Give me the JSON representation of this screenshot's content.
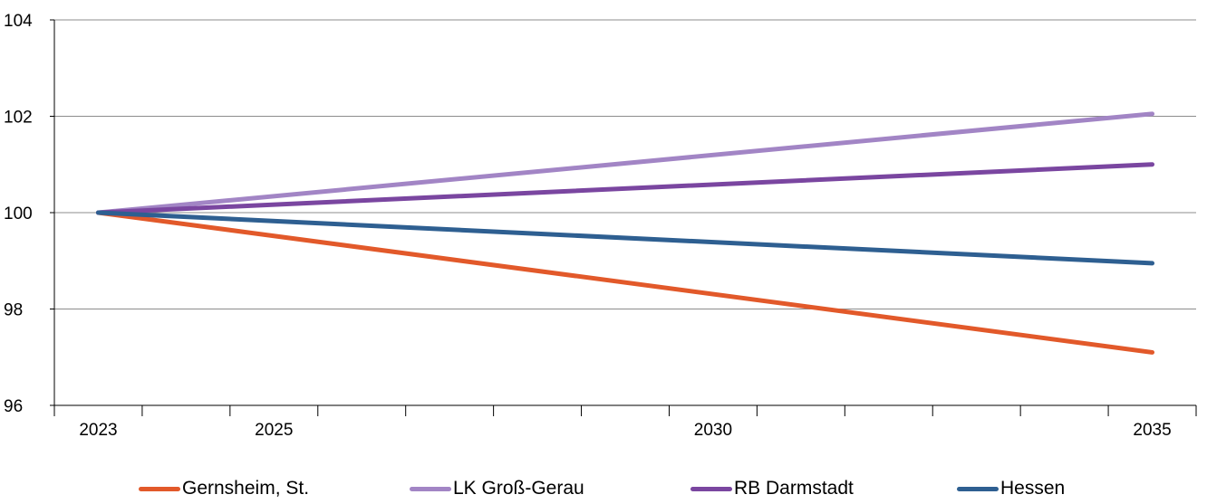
{
  "chart_data": {
    "type": "line",
    "title": "",
    "xlabel": "",
    "ylabel": "",
    "x": [
      2023,
      2035
    ],
    "xticks": [
      "2023",
      "2025",
      "2030",
      "2035"
    ],
    "xlim": [
      2022.5,
      2035.5
    ],
    "ylim": [
      96,
      104
    ],
    "yticks": [
      "96",
      "98",
      "100",
      "102",
      "104"
    ],
    "grid": "horizontal",
    "legend_position": "bottom",
    "series": [
      {
        "name": "Gernsheim, St.",
        "color": "#e2592a",
        "x": [
          2023,
          2035
        ],
        "values": [
          100,
          97.1
        ]
      },
      {
        "name": "LK Groß-Gerau",
        "color": "#a285c5",
        "x": [
          2023,
          2035
        ],
        "values": [
          100,
          102.05
        ]
      },
      {
        "name": "RB Darmstadt",
        "color": "#7a46a0",
        "x": [
          2023,
          2035
        ],
        "values": [
          100,
          101.0
        ]
      },
      {
        "name": "Hessen",
        "color": "#2e5f91",
        "x": [
          2023,
          2035
        ],
        "values": [
          100,
          98.95
        ]
      }
    ]
  }
}
